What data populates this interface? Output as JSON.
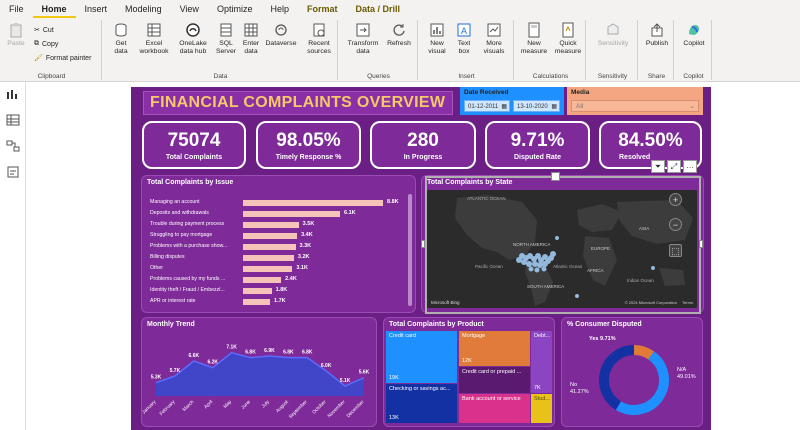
{
  "menu": {
    "items": [
      "File",
      "Home",
      "Insert",
      "Modeling",
      "View",
      "Optimize",
      "Help",
      "Format",
      "Data / Drill"
    ]
  },
  "ribbon": {
    "clipboard": {
      "paste": "Paste",
      "cut": "Cut",
      "copy": "Copy",
      "format_painter": "Format painter",
      "label": "Clipboard"
    },
    "data": {
      "get_data": "Get data",
      "excel": "Excel workbook",
      "onelake": "OneLake data hub",
      "sql": "SQL Server",
      "enter": "Enter data",
      "dataverse": "Dataverse",
      "recent": "Recent sources",
      "label": "Data"
    },
    "queries": {
      "transform": "Transform data",
      "refresh": "Refresh",
      "label": "Queries"
    },
    "insert": {
      "new_visual": "New visual",
      "text_box": "Text box",
      "more_visuals": "More visuals",
      "label": "Insert"
    },
    "calculations": {
      "new_measure": "New measure",
      "quick_measure": "Quick measure",
      "label": "Calculations"
    },
    "sensitivity": {
      "sensitivity": "Sensitivity",
      "label": "Sensitivity"
    },
    "share": {
      "publish": "Publish",
      "label": "Share"
    },
    "copilot": {
      "copilot": "Copilot",
      "label": "Copilot"
    }
  },
  "report": {
    "title": "FINANCIAL COMPLAINTS OVERVIEW",
    "date_slicer": {
      "title": "Date Received",
      "from": "01-12-2011",
      "to": "13-10-2020"
    },
    "media_slicer": {
      "title": "Media",
      "value": "All"
    },
    "kpis": [
      {
        "value": "75074",
        "label": "Total Complaints"
      },
      {
        "value": "98.05%",
        "label": "Timely Response %"
      },
      {
        "value": "280",
        "label": "In Progress"
      },
      {
        "value": "9.71%",
        "label": "Disputed Rate"
      },
      {
        "value": "84.50%",
        "label": "Resolved"
      }
    ],
    "issues": {
      "title": "Total Complaints by Issue",
      "rows": [
        {
          "label": "Managing an account",
          "value": 8.8,
          "text": "8.8K"
        },
        {
          "label": "Deposits and withdrawals",
          "value": 6.1,
          "text": "6.1K"
        },
        {
          "label": "Trouble during payment process",
          "value": 3.5,
          "text": "3.5K"
        },
        {
          "label": "Struggling to pay mortgage",
          "value": 3.4,
          "text": "3.4K"
        },
        {
          "label": "Problems with a purchase show...",
          "value": 3.3,
          "text": "3.3K"
        },
        {
          "label": "Billing disputes",
          "value": 3.2,
          "text": "3.2K"
        },
        {
          "label": "Other",
          "value": 3.1,
          "text": "3.1K"
        },
        {
          "label": "Problems caused by my funds ...",
          "value": 2.4,
          "text": "2.4K"
        },
        {
          "label": "Identity theft / Fraud / Embezzl...",
          "value": 1.8,
          "text": "1.8K"
        },
        {
          "label": "APR or interest rate",
          "value": 1.7,
          "text": "1.7K"
        }
      ]
    },
    "map": {
      "title": "Total Complaints by State",
      "labels": [
        "ATLANTIC OCEAN",
        "NORTH AMERICA",
        "Pacific Ocean",
        "Atlantic Ocean",
        "EUROPE",
        "ASIA",
        "AFRICA",
        "SOUTH AMERICA",
        "Indian Ocean"
      ],
      "attribution": "© 2024 Microsoft Corporation",
      "terms": "Terms",
      "logo": "Microsoft Bing"
    },
    "monthly": {
      "title": "Monthly Trend",
      "months": [
        "January",
        "February",
        "March",
        "April",
        "May",
        "June",
        "July",
        "August",
        "September",
        "October",
        "November",
        "December"
      ],
      "values": [
        5.3,
        5.7,
        6.6,
        6.2,
        7.1,
        6.8,
        6.9,
        6.8,
        6.8,
        6.0,
        5.1,
        5.6
      ],
      "labels": [
        "5.3K",
        "5.7K",
        "6.6K",
        "6.2K",
        "7.1K",
        "6.8K",
        "6.9K",
        "6.8K",
        "6.8K",
        "6.0K",
        "5.1K",
        "5.6K"
      ],
      "ylim": [
        4.5,
        7.5
      ]
    },
    "product": {
      "title": "Total Complaints by Product",
      "tiles": [
        {
          "name": "Credit card",
          "value": "19K",
          "color": "#1e90ff"
        },
        {
          "name": "Mortgage",
          "value": "12K",
          "color": "#e07b39"
        },
        {
          "name": "Debt...",
          "value": "7K",
          "color": "#8b44c2"
        },
        {
          "name": "Credit card or prepaid ...",
          "value": "",
          "color": "#5a1a6e"
        },
        {
          "name": "Checking or savings ac...",
          "value": "13K",
          "color": "#1431a3"
        },
        {
          "name": "Bank account or service",
          "value": "",
          "color": "#d9328c"
        },
        {
          "name": "Stud...",
          "value": "",
          "color": "#e8c21a"
        }
      ]
    },
    "disputed": {
      "title": "% Consumer Disputed",
      "slices": [
        {
          "name": "Yes",
          "pct": 9.71,
          "label": "Yes 9.71%",
          "color": "#e07b39"
        },
        {
          "name": "N/A",
          "pct": 49.01,
          "label": "N/A 49.01%",
          "color": "#1e90ff"
        },
        {
          "name": "No",
          "pct": 41.27,
          "label": "No 41.27%",
          "color": "#1431a3"
        }
      ]
    }
  }
}
